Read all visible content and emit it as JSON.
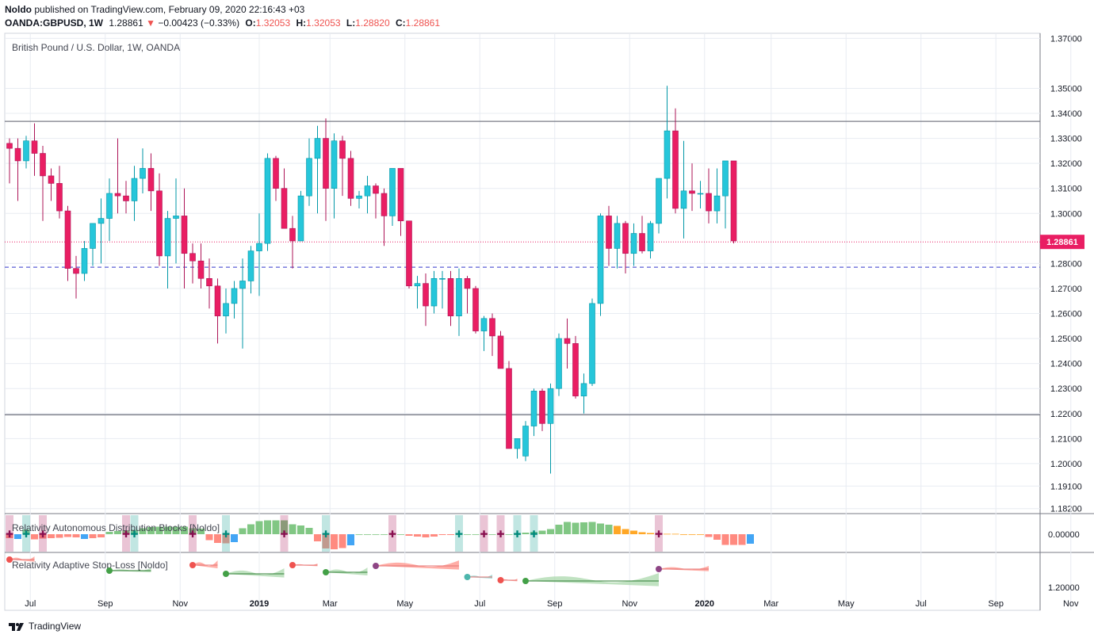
{
  "header": {
    "author": "Noldo",
    "published_text": "published on TradingView.com, February 09, 2020 22:16:43 +03",
    "symbol": "OANDA:GBPUSD, 1W",
    "last_price": "1.28861",
    "change_arrow": "▼",
    "change": "−0.00423 (−0.33%)",
    "o_label": "O:",
    "o_value": "1.32053",
    "h_label": "H:",
    "h_value": "1.32053",
    "l_label": "L:",
    "l_value": "1.28820",
    "c_label": "C:",
    "c_value": "1.28861"
  },
  "footer": {
    "brand": "TradingView"
  },
  "colors": {
    "up": "#26c6da",
    "down": "#e91e63",
    "up_border": "#0097a7",
    "down_border": "#ad1457",
    "grid": "#e8ecf2",
    "level_line": "#787b86",
    "dashed_line": "#5b5fd6",
    "price_tag": "#e91e63",
    "hist_green": "#81c784",
    "hist_red": "#ff8a80",
    "hist_orange": "#ffa726",
    "hist_blue": "#42a5f5"
  },
  "chart_data": [
    {
      "type": "candlestick",
      "title": "British Pound / U.S. Dollar, 1W, OANDA",
      "y_range": [
        1.18,
        1.372
      ],
      "y_ticks": [
        "1.37000",
        "1.35000",
        "1.34000",
        "1.33000",
        "1.32000",
        "1.31000",
        "1.30000",
        "1.28000",
        "1.27000",
        "1.26000",
        "1.25000",
        "1.24000",
        "1.23000",
        "1.22000",
        "1.21000",
        "1.20000",
        "1.19100",
        "1.18200"
      ],
      "x_ticks": [
        {
          "label": "Jul",
          "bold": false,
          "index": 2.5
        },
        {
          "label": "Sep",
          "bold": false,
          "index": 11.5
        },
        {
          "label": "Nov",
          "bold": false,
          "index": 20.5
        },
        {
          "label": "2019",
          "bold": true,
          "index": 30
        },
        {
          "label": "Mar",
          "bold": false,
          "index": 38.5
        },
        {
          "label": "May",
          "bold": false,
          "index": 47.5
        },
        {
          "label": "Jul",
          "bold": false,
          "index": 56.5
        },
        {
          "label": "Sep",
          "bold": false,
          "index": 65.5
        },
        {
          "label": "Nov",
          "bold": false,
          "index": 74.5
        },
        {
          "label": "2020",
          "bold": true,
          "index": 83.5
        },
        {
          "label": "Mar",
          "bold": false,
          "index": 91.5
        },
        {
          "label": "May",
          "bold": false,
          "index": 100.5
        },
        {
          "label": "Jul",
          "bold": false,
          "index": 109.5
        },
        {
          "label": "Sep",
          "bold": false,
          "index": 118.5
        },
        {
          "label": "Nov",
          "bold": false,
          "index": 127.5
        }
      ],
      "levels": [
        1.3368,
        1.2195
      ],
      "dashed_level": 1.2785,
      "last_price_level": 1.28861,
      "last_price_label": "1.28861",
      "candles": [
        [
          1.328,
          1.33,
          1.312,
          1.326
        ],
        [
          1.326,
          1.33,
          1.305,
          1.321
        ],
        [
          1.321,
          1.331,
          1.318,
          1.329
        ],
        [
          1.329,
          1.336,
          1.315,
          1.324
        ],
        [
          1.324,
          1.327,
          1.297,
          1.315
        ],
        [
          1.315,
          1.318,
          1.305,
          1.312
        ],
        [
          1.312,
          1.319,
          1.298,
          1.301
        ],
        [
          1.301,
          1.303,
          1.273,
          1.278
        ],
        [
          1.278,
          1.283,
          1.266,
          1.276
        ],
        [
          1.276,
          1.289,
          1.273,
          1.286
        ],
        [
          1.286,
          1.296,
          1.279,
          1.296
        ],
        [
          1.296,
          1.306,
          1.28,
          1.298
        ],
        [
          1.298,
          1.314,
          1.289,
          1.308
        ],
        [
          1.308,
          1.33,
          1.3,
          1.307
        ],
        [
          1.307,
          1.313,
          1.3,
          1.305
        ],
        [
          1.305,
          1.319,
          1.297,
          1.314
        ],
        [
          1.314,
          1.326,
          1.308,
          1.318
        ],
        [
          1.318,
          1.324,
          1.301,
          1.309
        ],
        [
          1.309,
          1.316,
          1.279,
          1.283
        ],
        [
          1.283,
          1.301,
          1.27,
          1.298
        ],
        [
          1.298,
          1.314,
          1.28,
          1.299
        ],
        [
          1.299,
          1.31,
          1.27,
          1.284
        ],
        [
          1.284,
          1.288,
          1.272,
          1.281
        ],
        [
          1.281,
          1.288,
          1.27,
          1.274
        ],
        [
          1.274,
          1.282,
          1.262,
          1.271
        ],
        [
          1.271,
          1.274,
          1.248,
          1.259
        ],
        [
          1.259,
          1.27,
          1.252,
          1.264
        ],
        [
          1.264,
          1.273,
          1.258,
          1.27
        ],
        [
          1.27,
          1.282,
          1.246,
          1.273
        ],
        [
          1.273,
          1.287,
          1.268,
          1.285
        ],
        [
          1.285,
          1.3,
          1.267,
          1.288
        ],
        [
          1.288,
          1.324,
          1.285,
          1.322
        ],
        [
          1.322,
          1.323,
          1.305,
          1.31
        ],
        [
          1.31,
          1.318,
          1.294,
          1.294
        ],
        [
          1.294,
          1.299,
          1.278,
          1.289
        ],
        [
          1.289,
          1.309,
          1.289,
          1.307
        ],
        [
          1.307,
          1.33,
          1.303,
          1.322
        ],
        [
          1.322,
          1.335,
          1.3,
          1.33
        ],
        [
          1.33,
          1.338,
          1.297,
          1.31
        ],
        [
          1.31,
          1.332,
          1.298,
          1.329
        ],
        [
          1.329,
          1.331,
          1.307,
          1.322
        ],
        [
          1.322,
          1.325,
          1.303,
          1.306
        ],
        [
          1.306,
          1.309,
          1.302,
          1.307
        ],
        [
          1.307,
          1.315,
          1.3,
          1.311
        ],
        [
          1.311,
          1.312,
          1.298,
          1.308
        ],
        [
          1.308,
          1.31,
          1.287,
          1.299
        ],
        [
          1.299,
          1.318,
          1.295,
          1.318
        ],
        [
          1.318,
          1.318,
          1.291,
          1.297
        ],
        [
          1.297,
          1.297,
          1.27,
          1.271
        ],
        [
          1.271,
          1.275,
          1.262,
          1.272
        ],
        [
          1.272,
          1.276,
          1.255,
          1.263
        ],
        [
          1.263,
          1.277,
          1.26,
          1.274
        ],
        [
          1.274,
          1.277,
          1.262,
          1.274
        ],
        [
          1.274,
          1.277,
          1.255,
          1.259
        ],
        [
          1.259,
          1.278,
          1.251,
          1.274
        ],
        [
          1.274,
          1.275,
          1.26,
          1.27
        ],
        [
          1.27,
          1.271,
          1.252,
          1.253
        ],
        [
          1.253,
          1.259,
          1.245,
          1.258
        ],
        [
          1.258,
          1.26,
          1.243,
          1.251
        ],
        [
          1.251,
          1.253,
          1.238,
          1.238
        ],
        [
          1.238,
          1.241,
          1.206,
          1.206
        ],
        [
          1.206,
          1.21,
          1.202,
          1.21
        ],
        [
          1.203,
          1.217,
          1.201,
          1.215
        ],
        [
          1.215,
          1.23,
          1.211,
          1.229
        ],
        [
          1.229,
          1.23,
          1.213,
          1.216
        ],
        [
          1.216,
          1.232,
          1.196,
          1.23
        ],
        [
          1.23,
          1.252,
          1.227,
          1.25
        ],
        [
          1.25,
          1.258,
          1.238,
          1.248
        ],
        [
          1.248,
          1.251,
          1.226,
          1.227
        ],
        [
          1.227,
          1.236,
          1.22,
          1.232
        ],
        [
          1.232,
          1.266,
          1.231,
          1.264
        ],
        [
          1.264,
          1.3,
          1.259,
          1.299
        ],
        [
          1.299,
          1.303,
          1.279,
          1.286
        ],
        [
          1.286,
          1.299,
          1.278,
          1.296
        ],
        [
          1.296,
          1.297,
          1.276,
          1.284
        ],
        [
          1.284,
          1.296,
          1.279,
          1.292
        ],
        [
          1.292,
          1.299,
          1.284,
          1.285
        ],
        [
          1.285,
          1.297,
          1.282,
          1.296
        ],
        [
          1.296,
          1.314,
          1.292,
          1.314
        ],
        [
          1.314,
          1.351,
          1.306,
          1.333
        ],
        [
          1.333,
          1.342,
          1.3,
          1.302
        ],
        [
          1.302,
          1.329,
          1.29,
          1.309
        ],
        [
          1.309,
          1.32,
          1.301,
          1.308
        ],
        [
          1.308,
          1.313,
          1.302,
          1.308
        ],
        [
          1.308,
          1.318,
          1.296,
          1.301
        ],
        [
          1.301,
          1.318,
          1.296,
          1.307
        ],
        [
          1.307,
          1.321,
          1.294,
          1.321
        ],
        [
          1.321,
          1.321,
          1.288,
          1.289
        ]
      ]
    },
    {
      "type": "bar",
      "title": "Relativity Autonomous Distribution Blocks [Noldo]",
      "y_tick": "0.00000",
      "values": [
        -1,
        -1.2,
        1.2,
        -1.3,
        -1.1,
        -1,
        -0.9,
        -0.7,
        -0.8,
        -1.2,
        -1,
        -0.8,
        0.6,
        0.8,
        1,
        1.1,
        1.5,
        1.8,
        1.9,
        1.9,
        1.9,
        1.9,
        1.5,
        1.4,
        -1.5,
        -2.2,
        -2.3,
        -2,
        1.5,
        2.5,
        3.3,
        3.5,
        3.5,
        3.5,
        2.5,
        2.2,
        1.6,
        -1.8,
        -3.6,
        -3.8,
        -3.5,
        -2.8,
        0,
        0,
        0,
        0,
        0,
        0,
        -0.4,
        -0.6,
        -0.8,
        -0.6,
        -0.2,
        -0.2,
        0,
        0,
        0,
        0,
        0,
        0,
        0,
        0,
        0.4,
        0.6,
        0.9,
        1.3,
        2.4,
        3.1,
        2.9,
        3,
        3.1,
        2.7,
        2.4,
        2.1,
        1.3,
        0.9,
        0.5,
        0.3,
        0.2,
        0.1,
        0.1,
        0,
        0,
        0,
        -0.7,
        -1.4,
        -2.7,
        -2.7,
        -2.7,
        -2.4
      ],
      "colors": [
        "red",
        "blue",
        "green",
        "red",
        "red",
        "red",
        "red",
        "red",
        "red",
        "blue",
        "red",
        "red",
        "green",
        "green",
        "green",
        "green",
        "green",
        "green",
        "green",
        "green",
        "green",
        "green",
        "green",
        "green",
        "red",
        "red",
        "red",
        "blue",
        "green",
        "green",
        "green",
        "green",
        "green",
        "green",
        "green",
        "green",
        "green",
        "red",
        "red",
        "red",
        "red",
        "blue",
        "green",
        "green",
        "green",
        "green",
        "green",
        "green",
        "red",
        "red",
        "red",
        "red",
        "red",
        "red",
        "green",
        "green",
        "green",
        "green",
        "green",
        "green",
        "green",
        "green",
        "green",
        "green",
        "green",
        "green",
        "green",
        "green",
        "green",
        "green",
        "green",
        "green",
        "green",
        "orange",
        "orange",
        "orange",
        "orange",
        "orange",
        "orange",
        "orange",
        "orange",
        "orange",
        "orange",
        "orange",
        "red",
        "red",
        "red",
        "red",
        "red",
        "blue"
      ]
    },
    {
      "type": "line",
      "title": "Relativity Adaptive Stop-Loss [Noldo]",
      "y_tick": "1.20000"
    }
  ]
}
